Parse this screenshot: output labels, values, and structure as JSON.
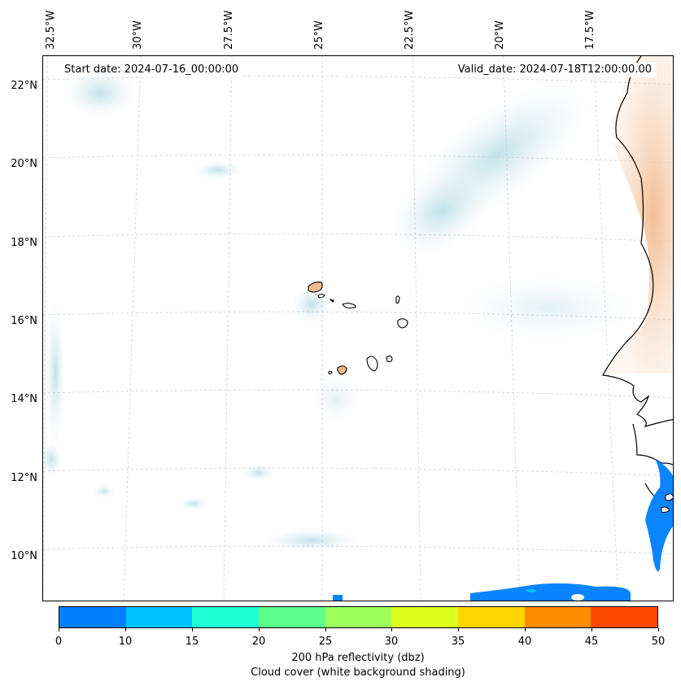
{
  "map": {
    "start_date": "Start date: 2024-07-16_00:00:00",
    "valid_date": "Valid_date: 2024-07-18T12:00:00.00",
    "longitude_labels": [
      "32.5°W",
      "30°W",
      "27.5°W",
      "25°W",
      "22.5°W",
      "20°W",
      "17.5°W"
    ],
    "latitude_labels": [
      "22°N",
      "20°N",
      "18°N",
      "16°N",
      "14°N",
      "12°N",
      "10°N"
    ],
    "region": "Cape Verde Islands and West African coast",
    "features": [
      "cape-verde-islands",
      "west-african-coastline"
    ]
  },
  "colorbar": {
    "ticks": [
      "0",
      "10",
      "15",
      "20",
      "25",
      "30",
      "35",
      "40",
      "45",
      "50"
    ],
    "colors": [
      "#0080ff",
      "#00c4ff",
      "#1fffd6",
      "#5cff8c",
      "#9cff5c",
      "#dcff1f",
      "#ffd500",
      "#ff8c00",
      "#ff4a00"
    ],
    "label_line1": "200 hPa reflectivity (dbz)",
    "label_line2": "Cloud cover (white background shading)"
  }
}
